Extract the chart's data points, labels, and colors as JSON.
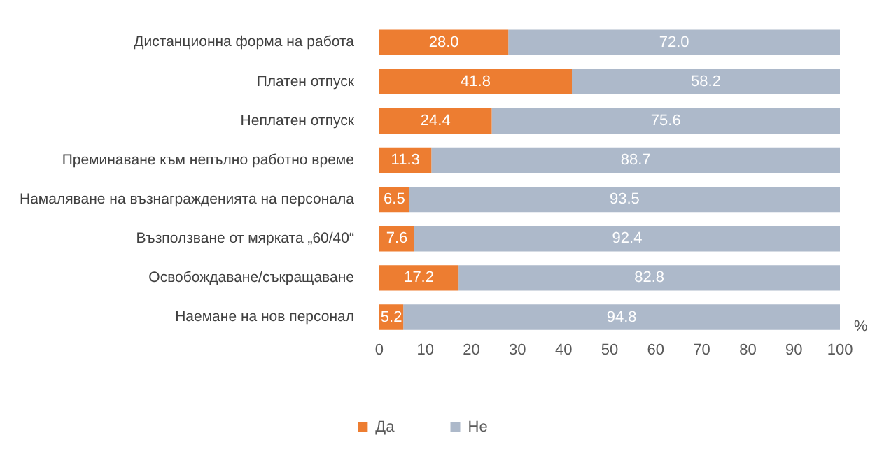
{
  "chart_data": {
    "type": "bar",
    "orientation": "horizontal",
    "stacked": true,
    "categories": [
      "Дистанционна форма на работа",
      "Платен отпуск",
      "Неплатен отпуск",
      "Преминаване към непълно работно време",
      "Намаляване на възнагражденията на персонала",
      "Възползване от мярката „60/40“",
      "Освобождаване/съкращаване",
      "Наемане на нов персонал"
    ],
    "series": [
      {
        "name": "Да",
        "color": "#ed7d31",
        "values": [
          28.0,
          41.8,
          24.4,
          11.3,
          6.5,
          7.6,
          17.2,
          5.2
        ],
        "value_labels": [
          "28.0",
          "41.8",
          "24.4",
          "11.3",
          "6.5",
          "7.6",
          "17.2",
          "5.2"
        ]
      },
      {
        "name": "Не",
        "color": "#adb9ca",
        "values": [
          72.0,
          58.2,
          75.6,
          88.7,
          93.5,
          92.4,
          82.8,
          94.8
        ],
        "value_labels": [
          "72.0",
          "58.2",
          "75.6",
          "88.7",
          "93.5",
          "92.4",
          "82.8",
          "94.8"
        ]
      }
    ],
    "xlim": [
      0,
      100
    ],
    "xticks": [
      0,
      10,
      20,
      30,
      40,
      50,
      60,
      70,
      80,
      90,
      100
    ],
    "xlabel": "%",
    "grid": false,
    "legend": "bottom"
  }
}
